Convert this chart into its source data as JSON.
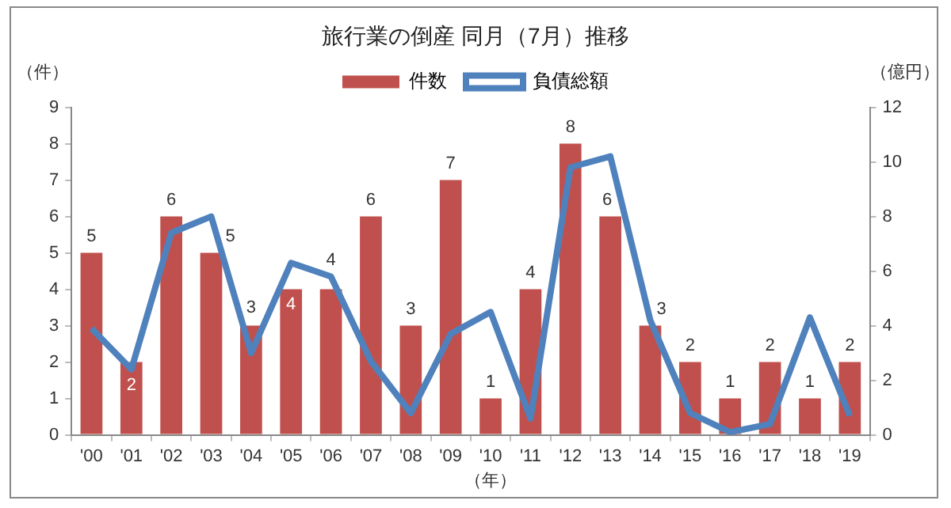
{
  "chart_data": {
    "type": "bar",
    "title": "旅行業の倒産 同月（7月）推移",
    "xlabel": "（年）",
    "ylabel": "（件）",
    "y2label": "（億円）",
    "categories": [
      "'00",
      "'01",
      "'02",
      "'03",
      "'04",
      "'05",
      "'06",
      "'07",
      "'08",
      "'09",
      "'10",
      "'11",
      "'12",
      "'13",
      "'14",
      "'15",
      "'16",
      "'17",
      "'18",
      "'19"
    ],
    "series": [
      {
        "name": "件数",
        "color": "#c0504d",
        "values": [
          5,
          2,
          6,
          5,
          3,
          4,
          4,
          6,
          3,
          7,
          1,
          4,
          8,
          6,
          3,
          2,
          1,
          2,
          1,
          2
        ],
        "value_labels": [
          "5",
          "2",
          "6",
          "5",
          "3",
          "4",
          "4",
          "6",
          "3",
          "7",
          "1",
          "4",
          "8",
          "6",
          "3",
          "2",
          "1",
          "2",
          "1",
          "2"
        ]
      },
      {
        "name": "負債総額",
        "type": "line",
        "axis": "y2",
        "color": "#4f81bd",
        "values": [
          3.9,
          2.4,
          7.4,
          8.0,
          3.0,
          6.3,
          5.8,
          2.7,
          0.8,
          3.7,
          4.5,
          0.6,
          9.8,
          10.2,
          4.2,
          0.8,
          0.1,
          0.4,
          4.3,
          0.7
        ]
      }
    ],
    "ylim": [
      0,
      9
    ],
    "yticks": [
      0,
      1,
      2,
      3,
      4,
      5,
      6,
      7,
      8,
      9
    ],
    "y2lim": [
      0,
      12
    ],
    "y2ticks": [
      0,
      2,
      4,
      6,
      8,
      10,
      12
    ],
    "grid": false,
    "legend": "top",
    "marker": "none"
  }
}
